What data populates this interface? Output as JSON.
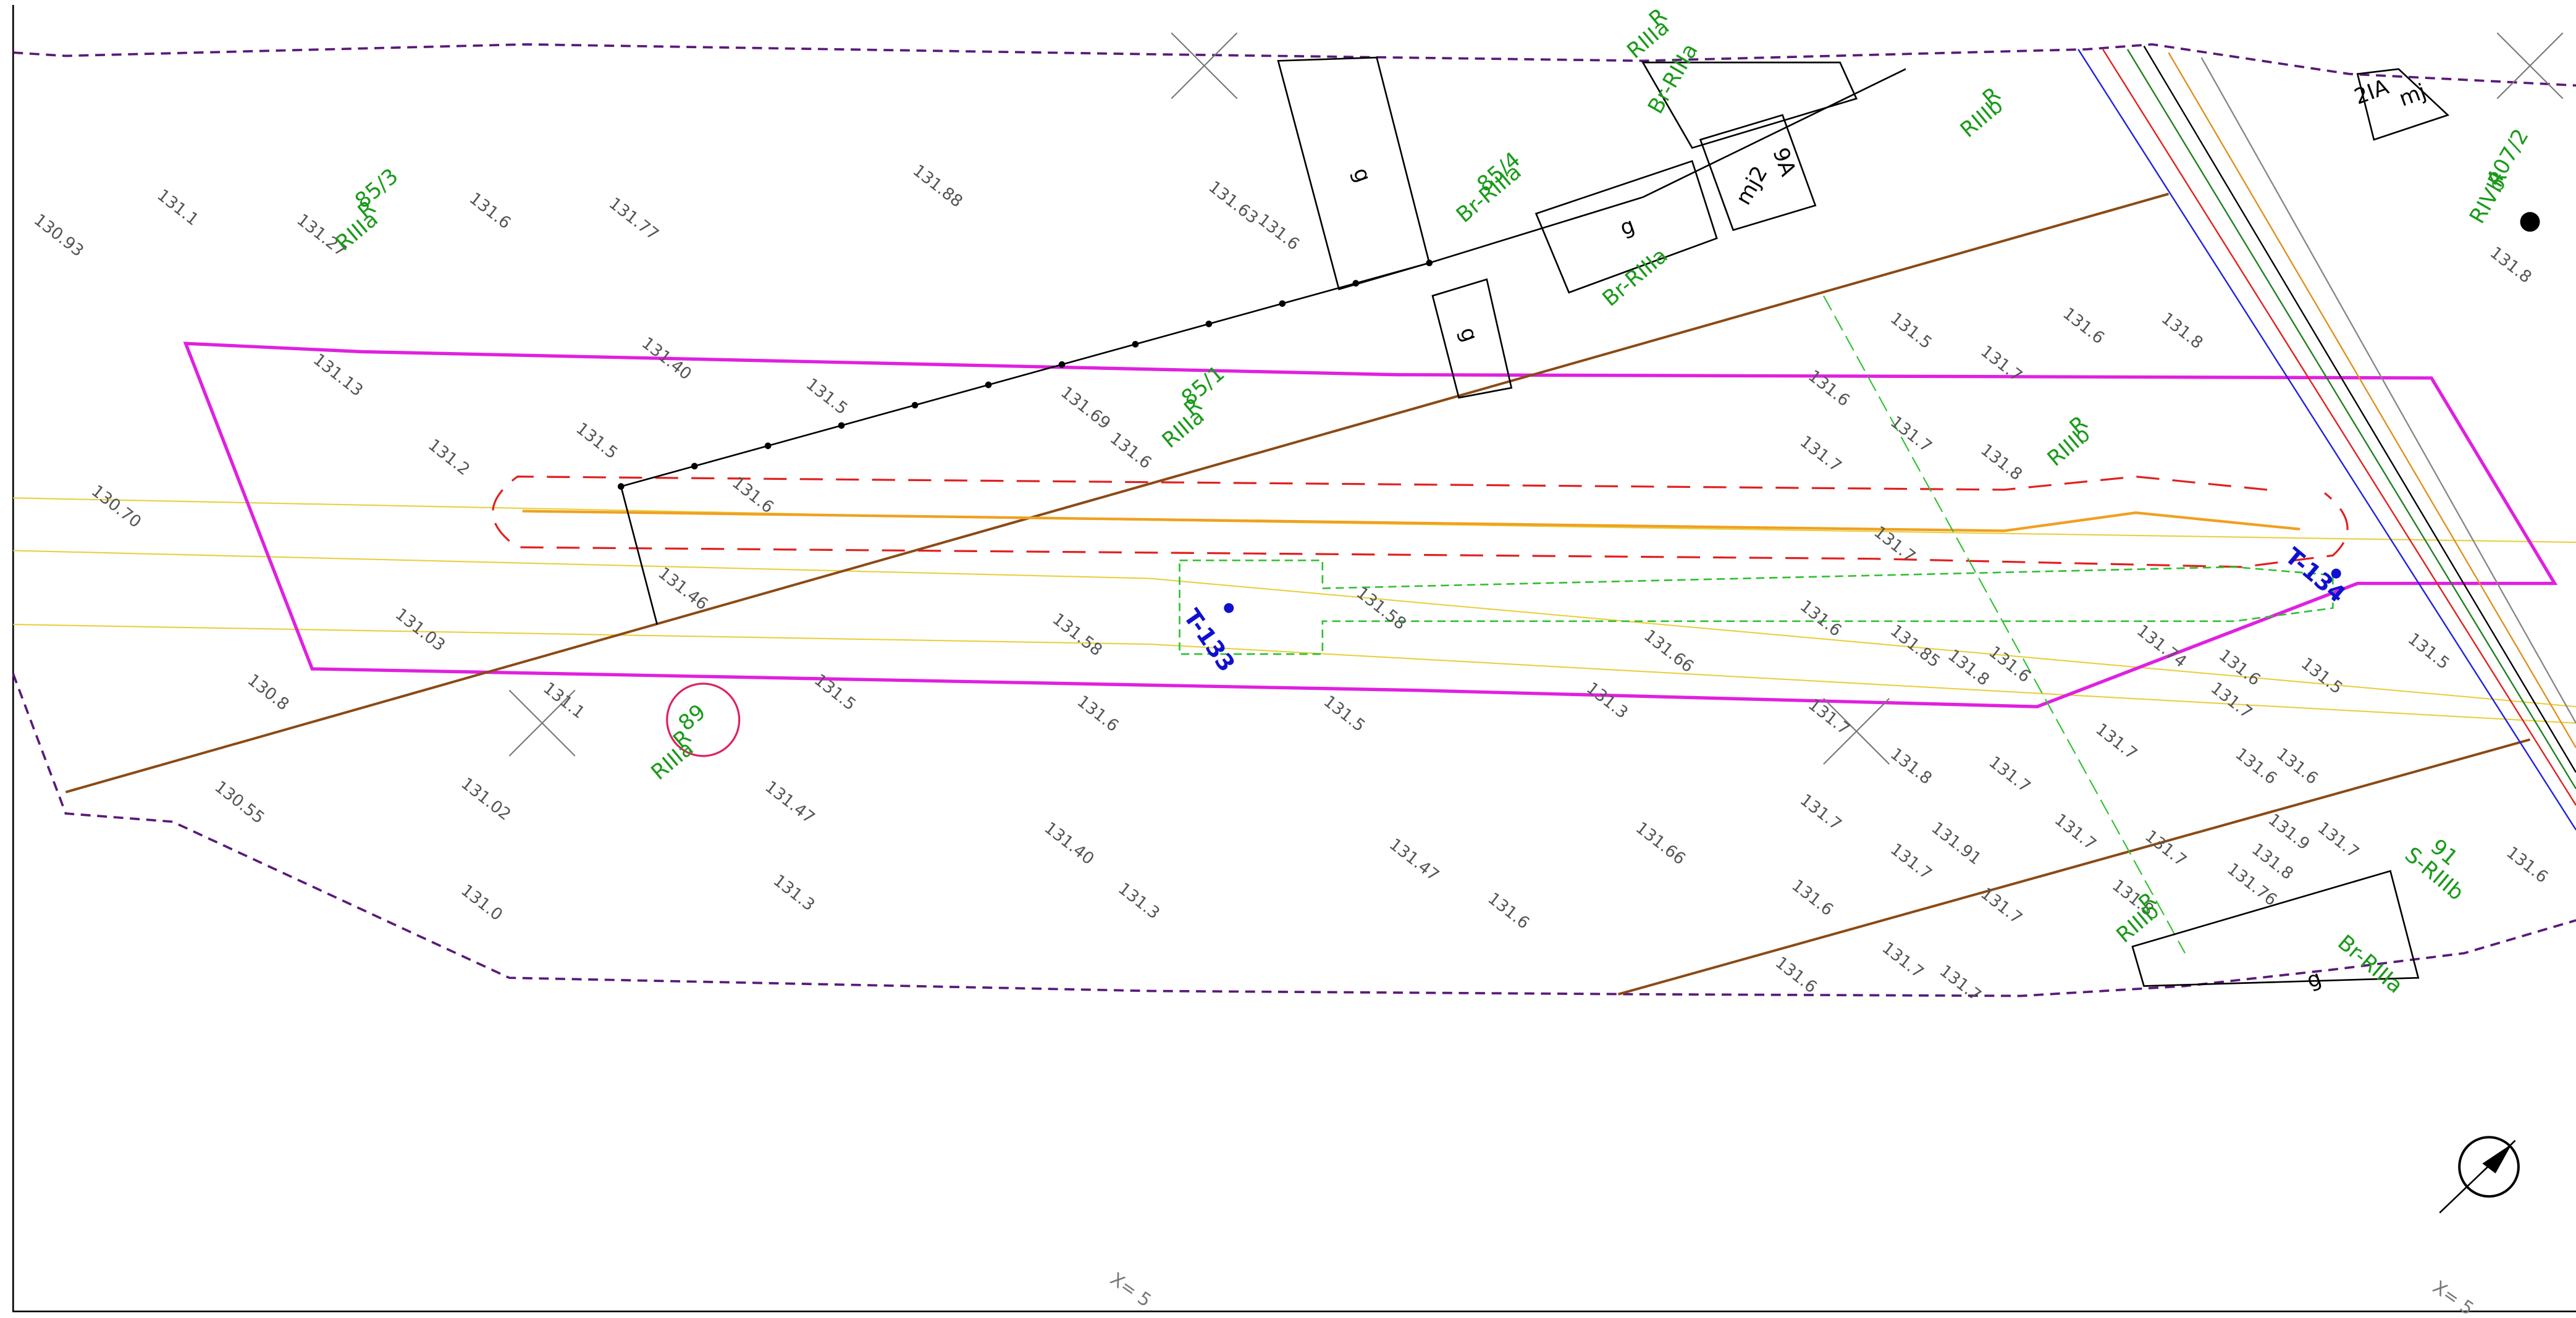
{
  "parcels": [
    [
      "85/3",
      "R",
      "RIIIa"
    ],
    [
      "85/4",
      "Br-RIIIa"
    ],
    [
      "85/1",
      "R",
      "RIIIa"
    ],
    [
      "89",
      "R",
      "RIIIa"
    ],
    [
      "R",
      "RIIIb"
    ],
    [
      "R",
      "RIIIb"
    ],
    [
      "R",
      "RIIIa"
    ],
    [
      "Br-RIIIa"
    ],
    [
      "Br-RIIIa"
    ],
    [
      "Br-RIIIa"
    ],
    [
      "91",
      "S-RIIIb"
    ],
    [
      "R",
      "RIIIb"
    ],
    [
      "407/2",
      "R",
      "RIVb"
    ]
  ],
  "points": [
    "T-133",
    "T-134"
  ],
  "buildings": [
    "g",
    "g",
    "g",
    "mj2",
    "9A",
    "2IA",
    "mj",
    "g"
  ],
  "elevations": [
    "131.1",
    "130.93",
    "131.27",
    "131.6",
    "131.77",
    "131.88",
    "131.63",
    "131.6",
    "131.13",
    "131.40",
    "131.5",
    "131.5",
    "131.2",
    "131.6",
    "130.70",
    "131.69",
    "131.6",
    "131.46",
    "131.03",
    "131.58",
    "131.58",
    "130.8",
    "131.1",
    "131.5",
    "131.6",
    "131.5",
    "131.3",
    "131.66",
    "130.55",
    "131.02",
    "131.47",
    "131.40",
    "131.3",
    "131.0",
    "131.3",
    "131.47",
    "131.6",
    "131.66",
    "131.7",
    "131.6",
    "131.6",
    "131.7",
    "131.7",
    "131.91",
    "131.7",
    "131.7",
    "131.7",
    "131.7",
    "131.6",
    "131.8",
    "131.5",
    "131.7",
    "131.7",
    "131.8",
    "131.6",
    "131.7",
    "131.7",
    "131.85",
    "131.8",
    "131.6",
    "131.6",
    "131.7",
    "131.8",
    "131.7",
    "131.74",
    "131.6",
    "131.7",
    "131.6",
    "131.6",
    "131.5",
    "131.5",
    "131.9",
    "131.7",
    "131.8",
    "131.76",
    "131.7",
    "131.8",
    "131.6",
    "131.8"
  ],
  "coordinate_labels": [
    "X= 5",
    "X= 5"
  ]
}
